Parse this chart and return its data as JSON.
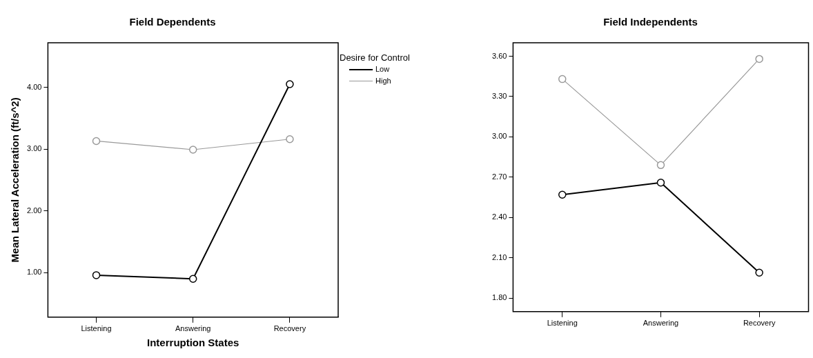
{
  "chart_data": [
    {
      "type": "line",
      "title": "Field Dependents",
      "xlabel": "Interruption States",
      "ylabel": "Mean Lateral Acceleration (ft/s^2)",
      "legend_title": "Desire for Control",
      "legend": "right",
      "marker": "circle",
      "categories": [
        "Listening",
        "Answering",
        "Recovery"
      ],
      "series": [
        {
          "name": "Low",
          "color": "#000000",
          "values": [
            0.96,
            0.9,
            4.05
          ]
        },
        {
          "name": "High",
          "color": "#999999",
          "values": [
            3.13,
            2.99,
            3.16
          ]
        }
      ],
      "ylim": [
        0.28,
        4.72
      ],
      "yticks": [
        {
          "value": 1,
          "label": "1.00"
        },
        {
          "value": 2,
          "label": "2.00"
        },
        {
          "value": 3,
          "label": "3.00"
        },
        {
          "value": 4,
          "label": "4.00"
        }
      ]
    },
    {
      "type": "line",
      "title": "Field Independents",
      "marker": "circle",
      "categories": [
        "Listening",
        "Answering",
        "Recovery"
      ],
      "series": [
        {
          "color": "#000000",
          "values": [
            2.57,
            2.66,
            1.99
          ]
        },
        {
          "color": "#999999",
          "values": [
            3.43,
            2.79,
            3.58
          ]
        }
      ],
      "ylim": [
        1.7,
        3.7
      ],
      "yticks": [
        {
          "value": 1.8,
          "label": "1.80"
        },
        {
          "value": 2.1,
          "label": "2.10"
        },
        {
          "value": 2.4,
          "label": "2.40"
        },
        {
          "value": 2.7,
          "label": "2.70"
        },
        {
          "value": 3.0,
          "label": "3.00"
        },
        {
          "value": 3.3,
          "label": "3.30"
        },
        {
          "value": 3.6,
          "label": "3.60"
        }
      ]
    }
  ]
}
